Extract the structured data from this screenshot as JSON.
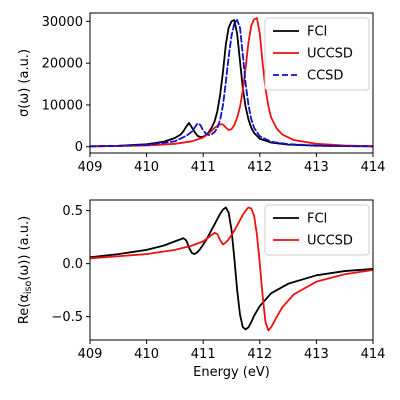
{
  "chart_data": [
    {
      "type": "line",
      "ylabel": "σ(ω) (a.u.)",
      "xlabel": "",
      "xlim": [
        409,
        414
      ],
      "ylim": [
        -1500,
        32000
      ],
      "xticks": [
        "409",
        "410",
        "411",
        "412",
        "413",
        "414"
      ],
      "yticks": [
        {
          "value": 0,
          "label": "0"
        },
        {
          "value": 10000,
          "label": "10000"
        },
        {
          "value": 20000,
          "label": "20000"
        },
        {
          "value": 30000,
          "label": "30000"
        }
      ],
      "legend_position": "top-right",
      "series": [
        {
          "name": "FCI",
          "color": "#000000",
          "dash": "solid",
          "x": [
            409.0,
            409.5,
            410.0,
            410.3,
            410.5,
            410.6,
            410.65,
            410.7,
            410.75,
            410.8,
            410.85,
            410.9,
            410.95,
            411.0,
            411.05,
            411.1,
            411.15,
            411.2,
            411.25,
            411.3,
            411.35,
            411.4,
            411.45,
            411.5,
            411.55,
            411.6,
            411.65,
            411.7,
            411.75,
            411.8,
            411.85,
            411.9,
            412.0,
            412.2,
            412.5,
            413.0,
            413.5,
            414.0
          ],
          "y": [
            100,
            220,
            600,
            1200,
            2100,
            2900,
            3700,
            4800,
            5700,
            4600,
            3500,
            2600,
            2300,
            2400,
            2800,
            3500,
            4600,
            6000,
            8500,
            12500,
            18000,
            24500,
            28500,
            30000,
            30300,
            27000,
            20500,
            14000,
            9500,
            6500,
            4500,
            3300,
            1900,
            1000,
            500,
            250,
            150,
            100
          ]
        },
        {
          "name": "UCCSD",
          "color": "#ee1111",
          "dash": "solid",
          "x": [
            409.0,
            409.5,
            410.0,
            410.5,
            410.8,
            411.0,
            411.1,
            411.2,
            411.3,
            411.35,
            411.4,
            411.45,
            411.5,
            411.55,
            411.6,
            411.65,
            411.7,
            411.75,
            411.8,
            411.85,
            411.9,
            411.95,
            412.0,
            412.05,
            412.1,
            412.15,
            412.2,
            412.3,
            412.4,
            412.6,
            413.0,
            413.5,
            414.0
          ],
          "y": [
            80,
            150,
            300,
            700,
            1300,
            2200,
            3200,
            4500,
            5400,
            5300,
            4600,
            4000,
            4200,
            5200,
            7000,
            9500,
            13500,
            19000,
            25000,
            29000,
            30500,
            30800,
            27000,
            20000,
            14000,
            9800,
            7000,
            4300,
            2900,
            1600,
            700,
            300,
            150
          ]
        },
        {
          "name": "CCSD",
          "color": "#1111cc",
          "dash": "dashed",
          "x": [
            409.0,
            409.5,
            410.0,
            410.5,
            410.7,
            410.8,
            410.85,
            410.9,
            410.95,
            411.0,
            411.05,
            411.1,
            411.15,
            411.2,
            411.25,
            411.3,
            411.35,
            411.4,
            411.45,
            411.5,
            411.55,
            411.6,
            411.65,
            411.7,
            411.75,
            411.8,
            411.85,
            411.9,
            412.0,
            412.2,
            412.5,
            413.0,
            413.5,
            414.0
          ],
          "y": [
            100,
            200,
            450,
            1300,
            2600,
            3600,
            4600,
            5600,
            5200,
            3900,
            3100,
            2800,
            3000,
            3500,
            4500,
            6500,
            10000,
            15500,
            21500,
            26500,
            29500,
            30300,
            28500,
            22000,
            15000,
            10000,
            6500,
            4500,
            2500,
            1200,
            600,
            300,
            150,
            100
          ]
        }
      ]
    },
    {
      "type": "line",
      "ylabel": "Re(α_iso(ω)) (a.u.)",
      "xlabel": "Energy (eV)",
      "xlim": [
        409,
        414
      ],
      "ylim": [
        -0.72,
        0.6
      ],
      "xticks": [
        "409",
        "410",
        "411",
        "412",
        "413",
        "414"
      ],
      "yticks": [
        {
          "value": 0.5,
          "label": "0.5"
        },
        {
          "value": 0.0,
          "label": "0.0"
        },
        {
          "value": -0.5,
          "label": "−0.5"
        }
      ],
      "legend_position": "top-right",
      "series": [
        {
          "name": "FCI",
          "color": "#000000",
          "dash": "solid",
          "x": [
            409.0,
            409.5,
            410.0,
            410.3,
            410.5,
            410.6,
            410.65,
            410.7,
            410.75,
            410.8,
            410.85,
            410.9,
            410.95,
            411.0,
            411.05,
            411.1,
            411.15,
            411.2,
            411.25,
            411.3,
            411.35,
            411.4,
            411.45,
            411.5,
            411.55,
            411.6,
            411.65,
            411.7,
            411.75,
            411.8,
            411.85,
            411.9,
            412.0,
            412.2,
            412.5,
            413.0,
            413.5,
            414.0
          ],
          "y": [
            0.06,
            0.09,
            0.13,
            0.17,
            0.21,
            0.23,
            0.24,
            0.22,
            0.15,
            0.1,
            0.09,
            0.11,
            0.14,
            0.18,
            0.22,
            0.27,
            0.32,
            0.37,
            0.42,
            0.47,
            0.51,
            0.53,
            0.48,
            0.32,
            0.05,
            -0.25,
            -0.48,
            -0.6,
            -0.62,
            -0.6,
            -0.55,
            -0.49,
            -0.4,
            -0.28,
            -0.19,
            -0.11,
            -0.07,
            -0.05
          ]
        },
        {
          "name": "UCCSD",
          "color": "#ee1111",
          "dash": "solid",
          "x": [
            409.0,
            409.5,
            410.0,
            410.5,
            410.8,
            411.0,
            411.1,
            411.2,
            411.25,
            411.3,
            411.35,
            411.4,
            411.45,
            411.5,
            411.55,
            411.6,
            411.65,
            411.7,
            411.75,
            411.8,
            411.85,
            411.9,
            411.95,
            412.0,
            412.05,
            412.1,
            412.15,
            412.2,
            412.3,
            412.4,
            412.6,
            413.0,
            413.5,
            414.0
          ],
          "y": [
            0.05,
            0.07,
            0.09,
            0.13,
            0.17,
            0.21,
            0.25,
            0.29,
            0.28,
            0.22,
            0.18,
            0.2,
            0.23,
            0.27,
            0.31,
            0.36,
            0.41,
            0.46,
            0.5,
            0.53,
            0.52,
            0.45,
            0.27,
            0.0,
            -0.3,
            -0.55,
            -0.63,
            -0.6,
            -0.5,
            -0.41,
            -0.29,
            -0.17,
            -0.1,
            -0.06
          ]
        }
      ]
    }
  ]
}
